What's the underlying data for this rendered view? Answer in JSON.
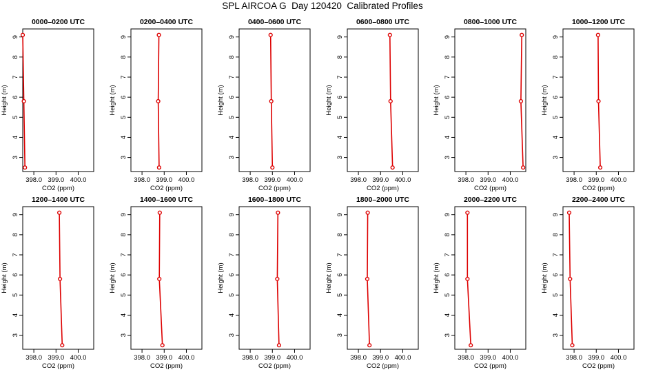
{
  "figure": {
    "title": "SPL AIRCOA G  Day 120420  Calibrated Profiles"
  },
  "chart_data": [
    {
      "type": "line",
      "title": "0000–0200 UTC",
      "xlabel": "CO2 (ppm)",
      "ylabel": "Height (m)",
      "xlim": [
        397.5,
        400.7
      ],
      "ylim": [
        2.3,
        9.4
      ],
      "xticks": [
        "398.0",
        "399.0",
        "400.0"
      ],
      "yticks": [
        "3",
        "4",
        "5",
        "6",
        "7",
        "8",
        "9"
      ],
      "series": [
        {
          "x": [
            397.5,
            397.55,
            397.6
          ],
          "y": [
            9.1,
            5.8,
            2.5
          ]
        }
      ]
    },
    {
      "type": "line",
      "title": "0200–0400 UTC",
      "xlabel": "CO2 (ppm)",
      "ylabel": "Height (m)",
      "xlim": [
        397.5,
        400.7
      ],
      "ylim": [
        2.3,
        9.4
      ],
      "xticks": [
        "398.0",
        "399.0",
        "400.0"
      ],
      "yticks": [
        "3",
        "4",
        "5",
        "6",
        "7",
        "8",
        "9"
      ],
      "series": [
        {
          "x": [
            398.76,
            398.73,
            398.77
          ],
          "y": [
            9.1,
            5.8,
            2.5
          ]
        }
      ]
    },
    {
      "type": "line",
      "title": "0400–0600 UTC",
      "xlabel": "CO2 (ppm)",
      "ylabel": "Height (m)",
      "xlim": [
        397.5,
        400.7
      ],
      "ylim": [
        2.3,
        9.4
      ],
      "xticks": [
        "398.0",
        "399.0",
        "400.0"
      ],
      "yticks": [
        "3",
        "4",
        "5",
        "6",
        "7",
        "8",
        "9"
      ],
      "series": [
        {
          "x": [
            398.92,
            398.95,
            399.0
          ],
          "y": [
            9.1,
            5.8,
            2.5
          ]
        }
      ]
    },
    {
      "type": "line",
      "title": "0600–0800 UTC",
      "xlabel": "CO2 (ppm)",
      "ylabel": "Height (m)",
      "xlim": [
        397.5,
        400.7
      ],
      "ylim": [
        2.3,
        9.4
      ],
      "xticks": [
        "398.0",
        "399.0",
        "400.0"
      ],
      "yticks": [
        "3",
        "4",
        "5",
        "6",
        "7",
        "8",
        "9"
      ],
      "series": [
        {
          "x": [
            399.42,
            399.45,
            399.54
          ],
          "y": [
            9.1,
            5.8,
            2.5
          ]
        }
      ]
    },
    {
      "type": "line",
      "title": "0800–1000 UTC",
      "xlabel": "CO2 (ppm)",
      "ylabel": "Height (m)",
      "xlim": [
        397.5,
        400.7
      ],
      "ylim": [
        2.3,
        9.4
      ],
      "xticks": [
        "398.0",
        "399.0",
        "400.0"
      ],
      "yticks": [
        "3",
        "4",
        "5",
        "6",
        "7",
        "8",
        "9"
      ],
      "series": [
        {
          "x": [
            400.52,
            400.48,
            400.58
          ],
          "y": [
            9.1,
            5.8,
            2.5
          ]
        }
      ]
    },
    {
      "type": "line",
      "title": "1000–1200 UTC",
      "xlabel": "CO2 (ppm)",
      "ylabel": "Height (m)",
      "xlim": [
        397.5,
        400.7
      ],
      "ylim": [
        2.3,
        9.4
      ],
      "xticks": [
        "398.0",
        "399.0",
        "400.0"
      ],
      "yticks": [
        "3",
        "4",
        "5",
        "6",
        "7",
        "8",
        "9"
      ],
      "series": [
        {
          "x": [
            399.08,
            399.1,
            399.18
          ],
          "y": [
            9.1,
            5.8,
            2.5
          ]
        }
      ]
    },
    {
      "type": "line",
      "title": "1200–1400 UTC",
      "xlabel": "CO2 (ppm)",
      "ylabel": "Height (m)",
      "xlim": [
        397.5,
        400.7
      ],
      "ylim": [
        2.3,
        9.4
      ],
      "xticks": [
        "398.0",
        "399.0",
        "400.0"
      ],
      "yticks": [
        "3",
        "4",
        "5",
        "6",
        "7",
        "8",
        "9"
      ],
      "series": [
        {
          "x": [
            399.15,
            399.18,
            399.28
          ],
          "y": [
            9.1,
            5.8,
            2.5
          ]
        }
      ]
    },
    {
      "type": "line",
      "title": "1400–1600 UTC",
      "xlabel": "CO2 (ppm)",
      "ylabel": "Height (m)",
      "xlim": [
        397.5,
        400.7
      ],
      "ylim": [
        2.3,
        9.4
      ],
      "xticks": [
        "398.0",
        "399.0",
        "400.0"
      ],
      "yticks": [
        "3",
        "4",
        "5",
        "6",
        "7",
        "8",
        "9"
      ],
      "series": [
        {
          "x": [
            398.8,
            398.78,
            398.92
          ],
          "y": [
            9.1,
            5.8,
            2.5
          ]
        }
      ]
    },
    {
      "type": "line",
      "title": "1600–1800 UTC",
      "xlabel": "CO2 (ppm)",
      "ylabel": "Height (m)",
      "xlim": [
        397.5,
        400.7
      ],
      "ylim": [
        2.3,
        9.4
      ],
      "xticks": [
        "398.0",
        "399.0",
        "400.0"
      ],
      "yticks": [
        "3",
        "4",
        "5",
        "6",
        "7",
        "8",
        "9"
      ],
      "series": [
        {
          "x": [
            399.25,
            399.22,
            399.3
          ],
          "y": [
            9.1,
            5.8,
            2.5
          ]
        }
      ]
    },
    {
      "type": "line",
      "title": "1800–2000 UTC",
      "xlabel": "CO2 (ppm)",
      "ylabel": "Height (m)",
      "xlim": [
        397.5,
        400.7
      ],
      "ylim": [
        2.3,
        9.4
      ],
      "xticks": [
        "398.0",
        "399.0",
        "400.0"
      ],
      "yticks": [
        "3",
        "4",
        "5",
        "6",
        "7",
        "8",
        "9"
      ],
      "series": [
        {
          "x": [
            398.42,
            398.4,
            398.5
          ],
          "y": [
            9.1,
            5.8,
            2.5
          ]
        }
      ]
    },
    {
      "type": "line",
      "title": "2000–2200 UTC",
      "xlabel": "CO2 (ppm)",
      "ylabel": "Height (m)",
      "xlim": [
        397.5,
        400.7
      ],
      "ylim": [
        2.3,
        9.4
      ],
      "xticks": [
        "398.0",
        "399.0",
        "400.0"
      ],
      "yticks": [
        "3",
        "4",
        "5",
        "6",
        "7",
        "8",
        "9"
      ],
      "series": [
        {
          "x": [
            398.07,
            398.07,
            398.22
          ],
          "y": [
            9.1,
            5.8,
            2.5
          ]
        }
      ]
    },
    {
      "type": "line",
      "title": "2200–2400 UTC",
      "xlabel": "CO2 (ppm)",
      "ylabel": "Height (m)",
      "xlim": [
        397.5,
        400.7
      ],
      "ylim": [
        2.3,
        9.4
      ],
      "xticks": [
        "398.0",
        "399.0",
        "400.0"
      ],
      "yticks": [
        "3",
        "4",
        "5",
        "6",
        "7",
        "8",
        "9"
      ],
      "series": [
        {
          "x": [
            397.78,
            397.82,
            397.92
          ],
          "y": [
            9.1,
            5.8,
            2.5
          ]
        }
      ]
    }
  ]
}
